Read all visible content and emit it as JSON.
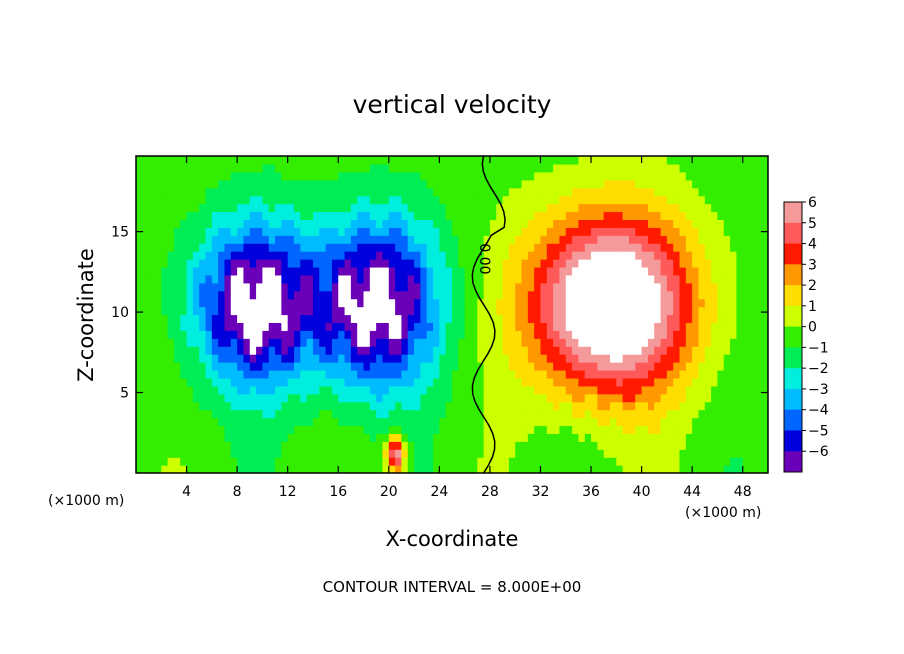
{
  "chart_data": {
    "type": "heatmap",
    "title": "vertical velocity",
    "xlabel": "X-coordinate",
    "ylabel": "Z-coordinate",
    "x_unit_left": "(×1000 m)",
    "x_unit_right": "(×1000 m)",
    "x_ticks": [
      4,
      8,
      12,
      16,
      20,
      24,
      28,
      32,
      36,
      40,
      44,
      48
    ],
    "y_ticks": [
      5,
      10,
      15
    ],
    "xlim": [
      0,
      50
    ],
    "ylim": [
      0,
      19.7
    ],
    "contour_label": "0.00",
    "footer": "CONTOUR INTERVAL = 8.000E+00",
    "colorbar": {
      "levels": [
        6,
        5,
        4,
        3,
        2,
        1,
        0,
        -1,
        -2,
        -3,
        -4,
        -5,
        -6
      ],
      "tick_labels": [
        "6",
        "5",
        "4",
        "3",
        "2",
        "1",
        "0",
        "−1",
        "−2",
        "−3",
        "−4",
        "−5",
        "−6"
      ],
      "colors": [
        "#f59a9a",
        "#ff5a5a",
        "#ff1a00",
        "#ff9900",
        "#ffdd00",
        "#ccff00",
        "#33ee00",
        "#00ee55",
        "#00eedd",
        "#00bbff",
        "#0066ff",
        "#0000dd",
        "#6a00b8"
      ]
    },
    "field_features": [
      {
        "kind": "downdraft",
        "center": [
          9.5,
          10.5
        ],
        "radius": [
          6,
          6.2
        ],
        "peak": -6
      },
      {
        "kind": "downdraft",
        "center": [
          19,
          10.5
        ],
        "radius": [
          6,
          6.5
        ],
        "peak": -6
      },
      {
        "kind": "updraft",
        "center": [
          37.5,
          10.5
        ],
        "radius": [
          8,
          7
        ],
        "peak": 8
      },
      {
        "kind": "updraft",
        "center": [
          20.5,
          1.2
        ],
        "radius": [
          1,
          1.5
        ],
        "peak": 5
      }
    ]
  }
}
